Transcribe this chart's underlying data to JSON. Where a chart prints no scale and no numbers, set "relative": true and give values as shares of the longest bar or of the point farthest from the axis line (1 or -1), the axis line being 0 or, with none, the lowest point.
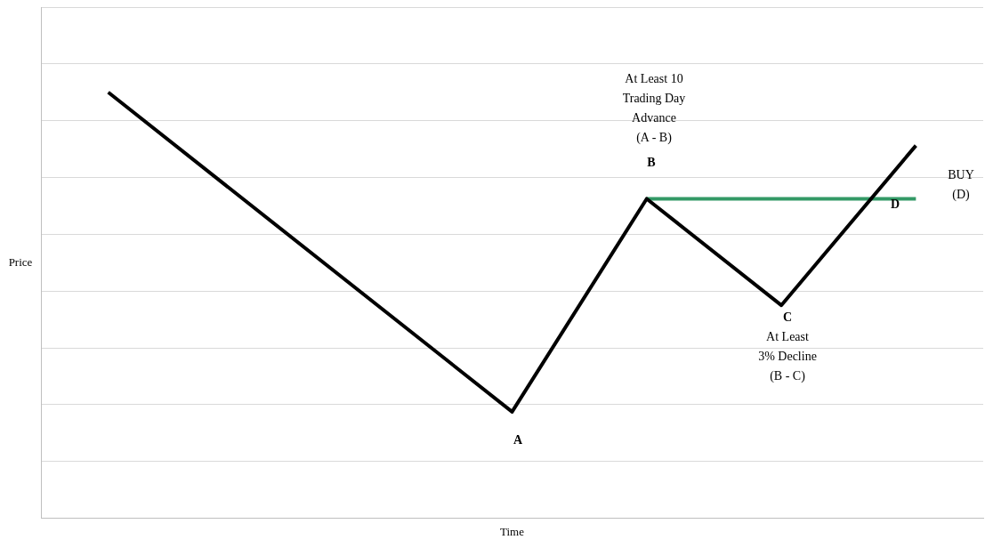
{
  "chart_data": {
    "type": "line",
    "relative": true,
    "xlabel": "Time",
    "ylabel": "Price",
    "categories": [
      null,
      null,
      null,
      null,
      null,
      null,
      null
    ],
    "series": [
      {
        "color": "#000000",
        "values": [
          1,
          null,
          null,
          0.25,
          0.75,
          0.5,
          0.875
        ]
      },
      {
        "color": "#339966",
        "values": [
          null,
          null,
          null,
          null,
          0.75,
          0.75,
          0.75
        ]
      }
    ],
    "grid": "y",
    "legend": false,
    "marker": "none",
    "line_style": "solid",
    "annotations": [
      "At Least 10\nTrading Day\nAdvance\n(A - B)",
      "B",
      "A",
      "C",
      "At Least\n3% Decline\n(B - C)",
      "D",
      "BUY\n(D)"
    ]
  }
}
